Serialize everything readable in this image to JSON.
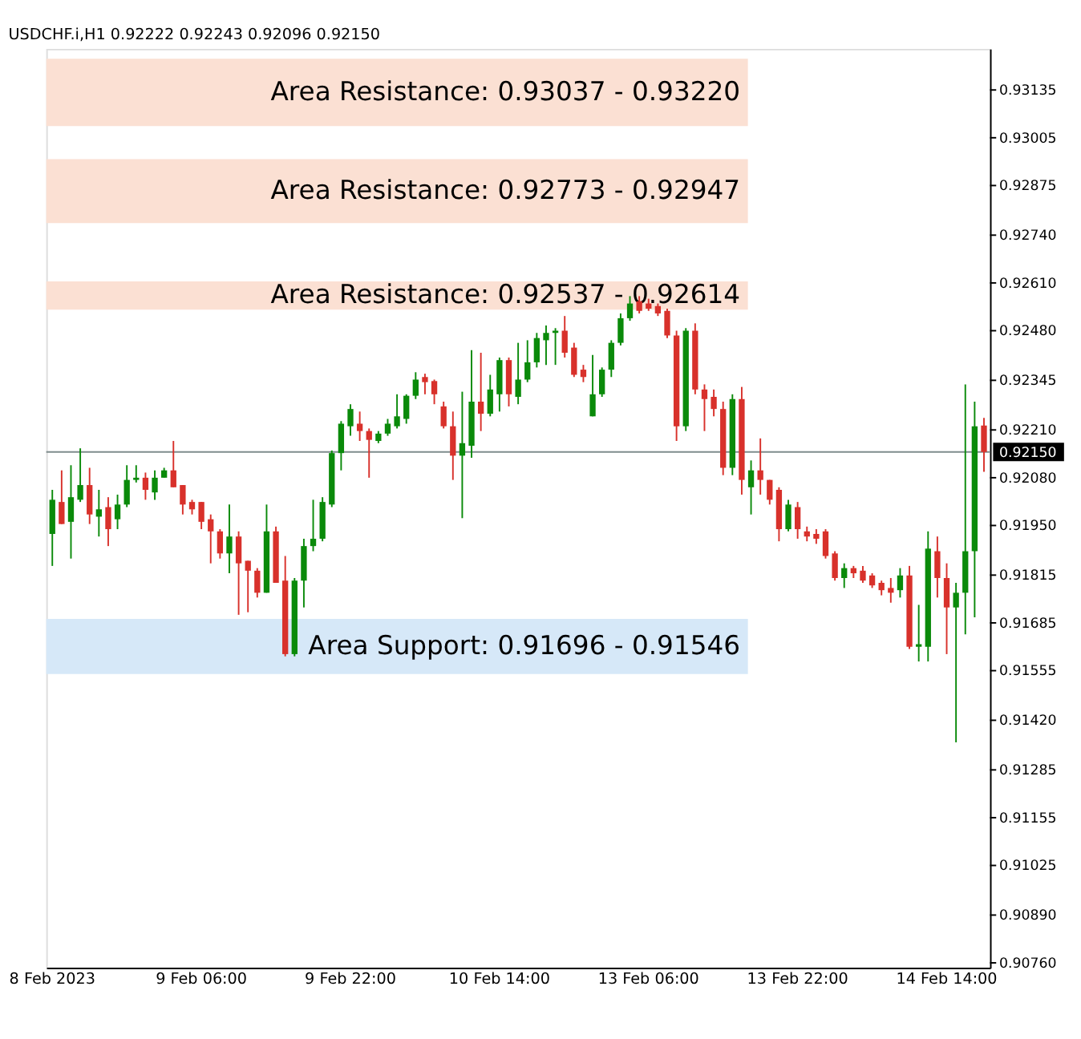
{
  "chart_data": {
    "type": "candlestick",
    "title": "USDCHF.i,H1 0.92222 0.92243 0.92096 0.92150",
    "categories": [
      "8 Feb 2023",
      null,
      null,
      null,
      null,
      null,
      null,
      null,
      null,
      null,
      null,
      null,
      null,
      null,
      null,
      null,
      "9 Feb 06:00",
      null,
      null,
      null,
      null,
      null,
      null,
      null,
      null,
      null,
      null,
      null,
      null,
      null,
      null,
      null,
      "9 Feb 22:00",
      null,
      null,
      null,
      null,
      null,
      null,
      null,
      null,
      null,
      null,
      null,
      null,
      null,
      null,
      null,
      "10 Feb 14:00",
      null,
      null,
      null,
      null,
      null,
      null,
      null,
      null,
      null,
      null,
      null,
      null,
      null,
      null,
      null,
      "13 Feb 06:00",
      null,
      null,
      null,
      null,
      null,
      null,
      null,
      null,
      null,
      null,
      null,
      null,
      null,
      null,
      null,
      "13 Feb 22:00",
      null,
      null,
      null,
      null,
      null,
      null,
      null,
      null,
      null,
      null,
      null,
      null,
      null,
      null,
      null,
      "14 Feb 14:00",
      null,
      null,
      null,
      null
    ],
    "ohlc": [
      [
        0.91927,
        0.92047,
        0.9184,
        0.9202
      ],
      [
        0.92014,
        0.921,
        0.91954,
        0.91954
      ],
      [
        0.9196,
        0.92114,
        0.9186,
        0.92027
      ],
      [
        0.9202,
        0.9216,
        0.92014,
        0.9206
      ],
      [
        0.9206,
        0.92107,
        0.91954,
        0.9198
      ],
      [
        0.91974,
        0.92047,
        0.9192,
        0.91994
      ],
      [
        0.92,
        0.92027,
        0.91894,
        0.9194
      ],
      [
        0.91967,
        0.92034,
        0.9194,
        0.92007
      ],
      [
        0.92007,
        0.92114,
        0.92,
        0.92074
      ],
      [
        0.92074,
        0.92114,
        0.92067,
        0.9208
      ],
      [
        0.9208,
        0.92094,
        0.9202,
        0.92047
      ],
      [
        0.9204,
        0.921,
        0.9202,
        0.9208
      ],
      [
        0.9208,
        0.92107,
        0.9208,
        0.921
      ],
      [
        0.921,
        0.9218,
        0.92054,
        0.92054
      ],
      [
        0.9206,
        0.9206,
        0.9198,
        0.92007
      ],
      [
        0.92014,
        0.9202,
        0.9198,
        0.91994
      ],
      [
        0.92014,
        0.92014,
        0.9194,
        0.9196
      ],
      [
        0.91967,
        0.9198,
        0.91847,
        0.91934
      ],
      [
        0.91934,
        0.9194,
        0.9186,
        0.91874
      ],
      [
        0.91874,
        0.92007,
        0.9182,
        0.9192
      ],
      [
        0.9192,
        0.91934,
        0.91707,
        0.91847
      ],
      [
        0.91854,
        0.91854,
        0.91714,
        0.91827
      ],
      [
        0.91827,
        0.91834,
        0.91754,
        0.91767
      ],
      [
        0.91767,
        0.92007,
        0.91767,
        0.91934
      ],
      [
        0.91934,
        0.91947,
        0.91794,
        0.91794
      ],
      [
        0.918,
        0.91867,
        0.91594,
        0.916
      ],
      [
        0.916,
        0.91807,
        0.91594,
        0.918
      ],
      [
        0.918,
        0.91914,
        0.91727,
        0.91894
      ],
      [
        0.91894,
        0.9202,
        0.9188,
        0.91914
      ],
      [
        0.91914,
        0.92027,
        0.91907,
        0.92014
      ],
      [
        0.92007,
        0.92154,
        0.92,
        0.92147
      ],
      [
        0.92147,
        0.92234,
        0.921,
        0.92227
      ],
      [
        0.9222,
        0.9228,
        0.92194,
        0.92267
      ],
      [
        0.92227,
        0.9226,
        0.9218,
        0.92207
      ],
      [
        0.92207,
        0.92214,
        0.9208,
        0.92183
      ],
      [
        0.9218,
        0.92207,
        0.92174,
        0.922
      ],
      [
        0.922,
        0.9224,
        0.92194,
        0.92227
      ],
      [
        0.9222,
        0.92307,
        0.92214,
        0.92247
      ],
      [
        0.9224,
        0.92307,
        0.92227,
        0.92303
      ],
      [
        0.92303,
        0.92367,
        0.92294,
        0.92347
      ],
      [
        0.92354,
        0.92363,
        0.92307,
        0.9234
      ],
      [
        0.92343,
        0.92347,
        0.9228,
        0.92307
      ],
      [
        0.92274,
        0.92287,
        0.92214,
        0.9222
      ],
      [
        0.9222,
        0.9226,
        0.92074,
        0.9214
      ],
      [
        0.9214,
        0.92314,
        0.9197,
        0.92174
      ],
      [
        0.92167,
        0.92427,
        0.92134,
        0.92287
      ],
      [
        0.92287,
        0.9242,
        0.92207,
        0.92254
      ],
      [
        0.92254,
        0.9236,
        0.92247,
        0.9232
      ],
      [
        0.92307,
        0.92407,
        0.9226,
        0.924
      ],
      [
        0.924,
        0.92407,
        0.92274,
        0.92307
      ],
      [
        0.923,
        0.92447,
        0.9228,
        0.92347
      ],
      [
        0.92347,
        0.92454,
        0.9234,
        0.92394
      ],
      [
        0.92394,
        0.92474,
        0.9238,
        0.9246
      ],
      [
        0.92454,
        0.92494,
        0.92387,
        0.92474
      ],
      [
        0.92474,
        0.92487,
        0.92387,
        0.9248
      ],
      [
        0.9248,
        0.9252,
        0.92407,
        0.9242
      ],
      [
        0.92434,
        0.92447,
        0.92354,
        0.9236
      ],
      [
        0.92374,
        0.92387,
        0.9234,
        0.92354
      ],
      [
        0.92247,
        0.92414,
        0.92247,
        0.92307
      ],
      [
        0.92307,
        0.9238,
        0.923,
        0.92374
      ],
      [
        0.92374,
        0.92454,
        0.92354,
        0.92447
      ],
      [
        0.92447,
        0.92527,
        0.9244,
        0.92514
      ],
      [
        0.92514,
        0.92574,
        0.92507,
        0.92554
      ],
      [
        0.9256,
        0.92574,
        0.92527,
        0.92534
      ],
      [
        0.92554,
        0.92567,
        0.92534,
        0.9254
      ],
      [
        0.92547,
        0.92554,
        0.9252,
        0.92527
      ],
      [
        0.92534,
        0.9254,
        0.9246,
        0.92467
      ],
      [
        0.92467,
        0.9248,
        0.9218,
        0.9222
      ],
      [
        0.9222,
        0.92487,
        0.92207,
        0.9248
      ],
      [
        0.9248,
        0.925,
        0.92307,
        0.9232
      ],
      [
        0.9232,
        0.92334,
        0.92207,
        0.92294
      ],
      [
        0.923,
        0.9232,
        0.92247,
        0.92267
      ],
      [
        0.92267,
        0.92287,
        0.92087,
        0.92107
      ],
      [
        0.92107,
        0.92307,
        0.92087,
        0.92294
      ],
      [
        0.92294,
        0.92327,
        0.92034,
        0.92074
      ],
      [
        0.92054,
        0.92127,
        0.9198,
        0.921
      ],
      [
        0.921,
        0.92187,
        0.92034,
        0.92074
      ],
      [
        0.92074,
        0.92074,
        0.92007,
        0.9202
      ],
      [
        0.92047,
        0.92054,
        0.91907,
        0.9194
      ],
      [
        0.9194,
        0.9202,
        0.91934,
        0.92007
      ],
      [
        0.92,
        0.92014,
        0.91914,
        0.9194
      ],
      [
        0.91934,
        0.91947,
        0.91907,
        0.9192
      ],
      [
        0.91927,
        0.9194,
        0.919,
        0.91914
      ],
      [
        0.91934,
        0.9194,
        0.9186,
        0.91867
      ],
      [
        0.91874,
        0.9188,
        0.918,
        0.91807
      ],
      [
        0.91807,
        0.91847,
        0.9178,
        0.91834
      ],
      [
        0.91834,
        0.9184,
        0.91807,
        0.9182
      ],
      [
        0.91827,
        0.9184,
        0.91794,
        0.918
      ],
      [
        0.91814,
        0.9182,
        0.9178,
        0.91787
      ],
      [
        0.91794,
        0.918,
        0.9176,
        0.91774
      ],
      [
        0.9178,
        0.91807,
        0.9174,
        0.91767
      ],
      [
        0.91774,
        0.91834,
        0.91754,
        0.91814
      ],
      [
        0.91814,
        0.9184,
        0.91614,
        0.9162
      ],
      [
        0.9162,
        0.91734,
        0.9158,
        0.91627
      ],
      [
        0.9162,
        0.91934,
        0.9158,
        0.91887
      ],
      [
        0.9188,
        0.9192,
        0.91754,
        0.91807
      ],
      [
        0.91807,
        0.91847,
        0.916,
        0.91727
      ],
      [
        0.91727,
        0.91794,
        0.9136,
        0.91767
      ],
      [
        0.91767,
        0.92334,
        0.91654,
        0.9188
      ],
      [
        0.9188,
        0.92287,
        0.917,
        0.9222
      ],
      [
        0.92222,
        0.92243,
        0.92096,
        0.9215
      ]
    ],
    "colors": [
      "#0a8a0a",
      "#d8312b",
      "#0a8a0a",
      "#0a8a0a",
      "#d8312b",
      "#0a8a0a",
      "#d8312b",
      "#0a8a0a",
      "#0a8a0a",
      "#0a8a0a",
      "#d8312b",
      "#0a8a0a",
      "#0a8a0a",
      "#d8312b",
      "#d8312b",
      "#d8312b",
      "#d8312b",
      "#d8312b",
      "#d8312b",
      "#0a8a0a",
      "#d8312b",
      "#d8312b",
      "#d8312b",
      "#0a8a0a",
      "#d8312b",
      "#d8312b",
      "#0a8a0a",
      "#0a8a0a",
      "#0a8a0a",
      "#0a8a0a",
      "#0a8a0a",
      "#0a8a0a",
      "#0a8a0a",
      "#d8312b",
      "#d8312b",
      "#0a8a0a",
      "#0a8a0a",
      "#0a8a0a",
      "#0a8a0a",
      "#0a8a0a",
      "#d8312b",
      "#d8312b",
      "#d8312b",
      "#d8312b",
      "#0a8a0a",
      "#0a8a0a",
      "#d8312b",
      "#0a8a0a",
      "#0a8a0a",
      "#d8312b",
      "#0a8a0a",
      "#0a8a0a",
      "#0a8a0a",
      "#0a8a0a",
      "#0a8a0a",
      "#d8312b",
      "#d8312b",
      "#d8312b",
      "#0a8a0a",
      "#0a8a0a",
      "#0a8a0a",
      "#0a8a0a",
      "#0a8a0a",
      "#d8312b",
      "#d8312b",
      "#d8312b",
      "#d8312b",
      "#d8312b",
      "#0a8a0a",
      "#d8312b",
      "#d8312b",
      "#d8312b",
      "#d8312b",
      "#0a8a0a",
      "#d8312b",
      "#0a8a0a",
      "#d8312b",
      "#d8312b",
      "#d8312b",
      "#0a8a0a",
      "#d8312b",
      "#d8312b",
      "#d8312b",
      "#d8312b",
      "#d8312b",
      "#0a8a0a",
      "#d8312b",
      "#d8312b",
      "#d8312b",
      "#d8312b",
      "#d8312b",
      "#0a8a0a",
      "#d8312b",
      "#0a8a0a",
      "#0a8a0a",
      "#d8312b",
      "#d8312b",
      "#0a8a0a",
      "#0a8a0a",
      "#0a8a0a",
      "#d8312b"
    ],
    "ylim": [
      0.90747,
      0.93247
    ],
    "yticks": [
      0.93135,
      0.93005,
      0.92875,
      {
        "value": 0.9274,
        "label": "0.92740"
      },
      {
        "value": 0.9261,
        "label": "0.92610"
      },
      {
        "value": 0.9248,
        "label": "0.92480"
      },
      0.92345,
      {
        "value": 0.9221,
        "label": "0.92210"
      },
      {
        "value": 0.9208,
        "label": "0.92080"
      },
      {
        "value": 0.9195,
        "label": "0.91950"
      },
      0.91815,
      0.91685,
      0.91555,
      {
        "value": 0.9142,
        "label": "0.91420"
      },
      0.91285,
      0.91155,
      0.91025,
      {
        "value": 0.9089,
        "label": "0.90890"
      },
      {
        "value": 0.9076,
        "label": "0.90760"
      }
    ],
    "ref_lines": [
      {
        "axis": "y",
        "value": 0.9215,
        "label": "0.92150",
        "color": "#7f8c8d"
      }
    ],
    "bands": [
      {
        "axis": "y",
        "from": 0.93037,
        "to": 0.9322,
        "label": "Area Resistance: 0.93037 - 0.93220",
        "color": "#fbe0d3"
      },
      {
        "axis": "y",
        "from": 0.92773,
        "to": 0.92947,
        "label": "Area Resistance: 0.92773 - 0.92947",
        "color": "#fbe0d3"
      },
      {
        "axis": "y",
        "from": 0.92537,
        "to": 0.92614,
        "label": "Area Resistance: 0.92537 - 0.92614",
        "color": "#fbe0d3"
      },
      {
        "axis": "y",
        "from": 0.91546,
        "to": 0.91696,
        "label": "Area Support: 0.91696 - 0.91546",
        "color": "#d6e8f8"
      }
    ],
    "grid": false
  }
}
